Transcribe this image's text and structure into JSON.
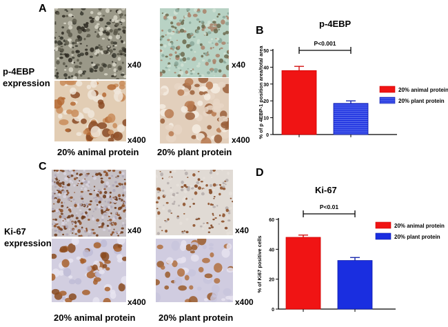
{
  "panels": {
    "A": {
      "letter": "A"
    },
    "B": {
      "letter": "B"
    },
    "C": {
      "letter": "C"
    },
    "D": {
      "letter": "D"
    }
  },
  "rows": [
    {
      "label_line1": "p-4EBP",
      "label_line2": "expression"
    },
    {
      "label_line1": "Ki-67",
      "label_line2": "expression"
    }
  ],
  "magnifications": {
    "low": "x40",
    "high": "x400"
  },
  "captions": {
    "animal": "20% animal protein",
    "plant": "20% plant protein"
  },
  "colors": {
    "animal": "#f01414",
    "plant": "#1a2ee0",
    "plant_stripe": "#6b7df0"
  },
  "chart_data": [
    {
      "type": "bar",
      "title": "p-4EBP",
      "ylabel": "% of p 4EBP-1 position area/total area",
      "categories": [
        "20% animal protein",
        "20% plant protein"
      ],
      "values": [
        38,
        18.5
      ],
      "errors": [
        2.5,
        1.5
      ],
      "ylim": [
        0,
        50
      ],
      "yticks": [
        0,
        10,
        20,
        30,
        40,
        50
      ],
      "significance": "P<0.001",
      "legend": [
        "20% animal protein",
        "20% plant protein"
      ],
      "legend_position": "right",
      "plant_pattern": "horizontal-stripes"
    },
    {
      "type": "bar",
      "title": "Ki-67",
      "ylabel": "% of Ki67 positive cells",
      "categories": [
        "20% animal protein",
        "20% plant protein"
      ],
      "values": [
        48,
        32.5
      ],
      "errors": [
        1.5,
        2
      ],
      "ylim": [
        0,
        60
      ],
      "yticks": [
        0,
        20,
        40,
        60
      ],
      "significance": "P<0.01",
      "legend": [
        "20% animal protein",
        "20% plant protein"
      ],
      "legend_position": "right",
      "plant_pattern": "solid"
    }
  ]
}
